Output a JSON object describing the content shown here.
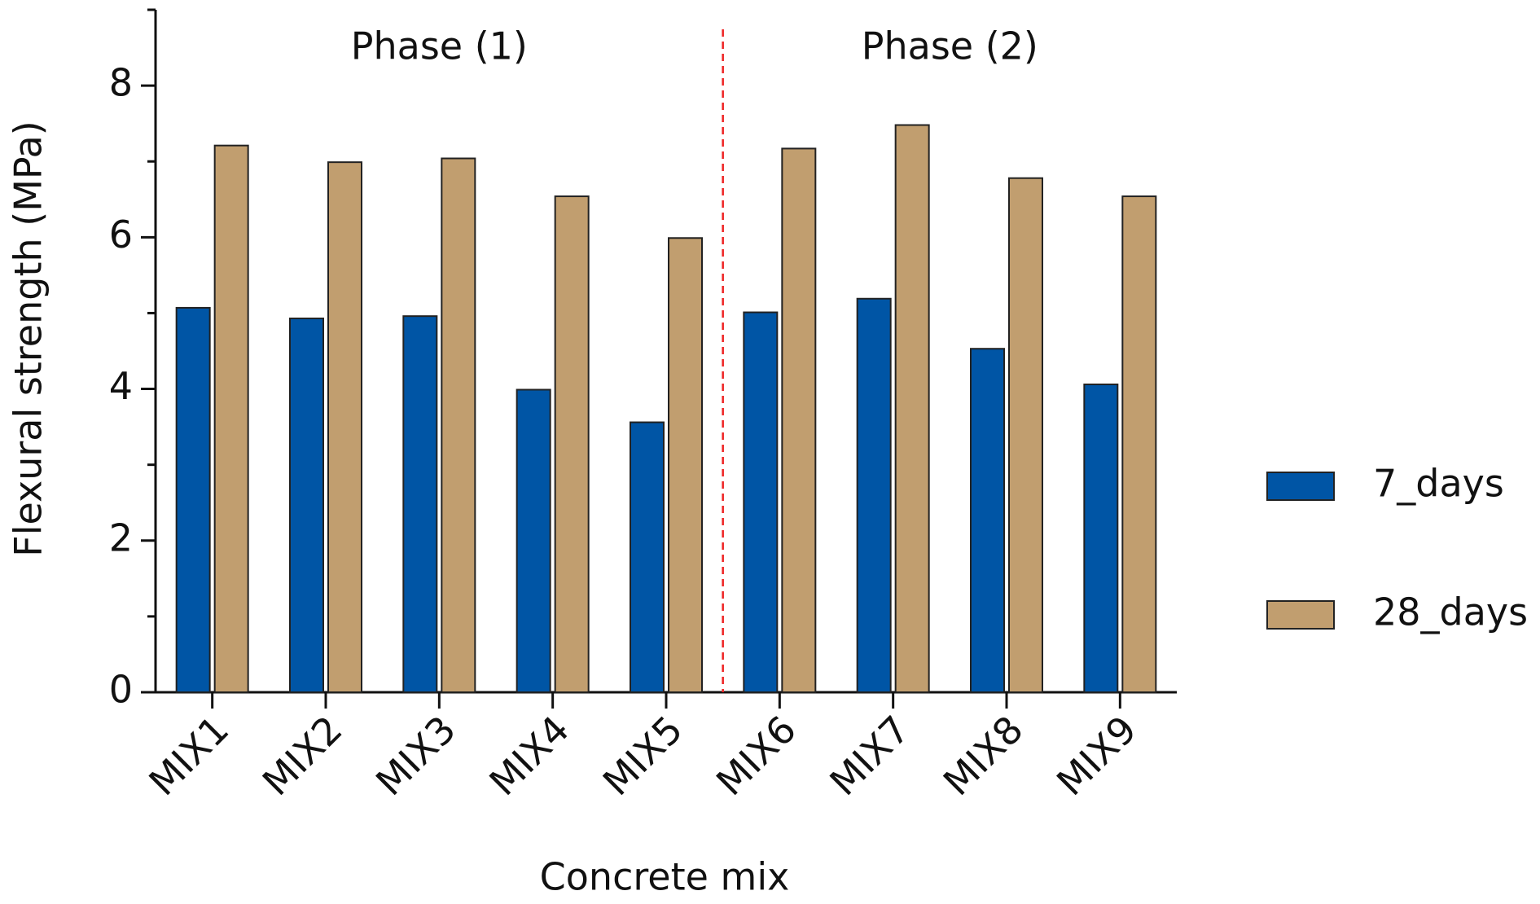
{
  "chart_data": {
    "type": "bar",
    "y_label": "Flexural strength (MPa)",
    "x_label": "Concrete mix",
    "categories": [
      "MIX1",
      "MIX2",
      "MIX3",
      "MIX4",
      "MIX5",
      "MIX6",
      "MIX7",
      "MIX8",
      "MIX9"
    ],
    "series": [
      {
        "name": "7_days",
        "color": "#0055a5",
        "values": [
          5.07,
          4.93,
          4.96,
          3.99,
          3.56,
          5.01,
          5.19,
          4.53,
          4.06
        ]
      },
      {
        "name": "28_days",
        "color": "#c19e6f",
        "values": [
          7.21,
          6.99,
          7.04,
          6.54,
          5.99,
          7.17,
          7.48,
          6.78,
          6.54
        ]
      }
    ],
    "annotations": [
      {
        "text": "Phase (1)"
      },
      {
        "text": "Phase (2)"
      }
    ],
    "divider": {
      "after_category": 4,
      "color": "#ee2222",
      "style": "dashed"
    },
    "ylim": [
      0,
      9
    ],
    "yticks": [
      0,
      2,
      4,
      6,
      8
    ],
    "yminorticks": [
      1,
      3,
      5,
      7,
      9
    ],
    "grid": false,
    "legend": "right"
  }
}
